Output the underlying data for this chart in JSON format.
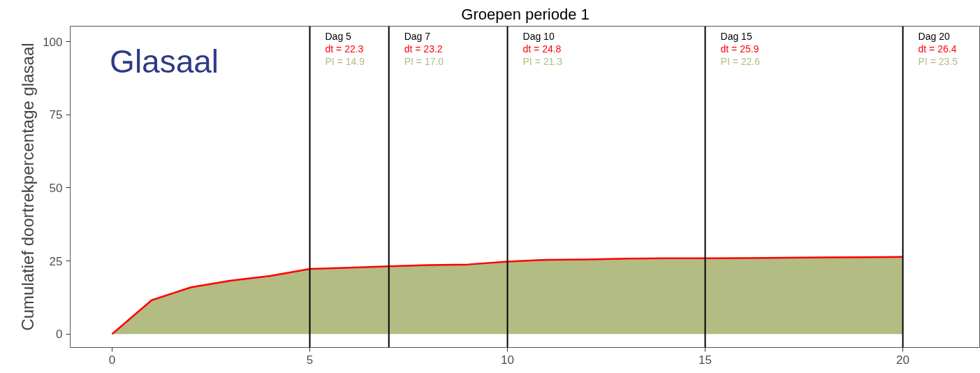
{
  "chart_data": {
    "type": "area",
    "title": "Groepen periode 1",
    "ylabel": "Cumulatief doortrekpercentage glasaal",
    "x": [
      0,
      1,
      2,
      3,
      4,
      5,
      6,
      7,
      8,
      9,
      10,
      11,
      12,
      13,
      14,
      15,
      16,
      17,
      18,
      19,
      20
    ],
    "series": [
      {
        "color": "#b2bc83",
        "values": [
          0,
          11.6,
          16.0,
          18.3,
          19.9,
          22.3,
          22.7,
          23.2,
          23.6,
          23.8,
          24.8,
          25.4,
          25.5,
          25.8,
          25.9,
          25.9,
          26.0,
          26.1,
          26.2,
          26.3,
          26.4
        ]
      }
    ],
    "xlim": [
      -1.06,
      21.96
    ],
    "ylim": [
      -4.6,
      105.3
    ],
    "xticks": [
      0,
      5,
      10,
      15,
      20
    ],
    "yticks": [
      0,
      25,
      50,
      75,
      100
    ],
    "grid": false,
    "ref_lines": [
      {
        "axis": "x",
        "value": 5,
        "label": "Dag 5",
        "color": "#000000"
      },
      {
        "axis": "x",
        "value": 7,
        "label": "Dag 7",
        "color": "#000000"
      },
      {
        "axis": "x",
        "value": 10,
        "label": "Dag 10",
        "color": "#000000"
      },
      {
        "axis": "x",
        "value": 15,
        "label": "Dag 15",
        "color": "#000000"
      },
      {
        "axis": "x",
        "value": 20,
        "label": "Dag 20",
        "color": "#000000"
      }
    ],
    "annotations": [
      "Glasaal",
      "dt = 22.3",
      "PI = 14.9",
      "dt = 23.2",
      "PI = 17.0",
      "dt = 24.8",
      "PI = 21.3",
      "dt = 25.9",
      "PI = 22.6",
      "dt = 26.4",
      "PI = 23.5"
    ]
  }
}
